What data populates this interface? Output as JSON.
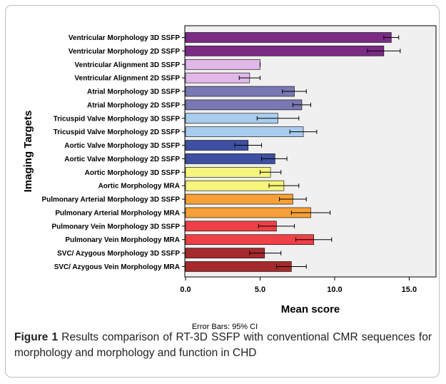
{
  "chart_data": {
    "type": "bar",
    "orientation": "horizontal",
    "categories": [
      "Ventricular Morphology 3D SSFP",
      "Ventricular Morphology 2D SSFP",
      "Ventricular Alignment 3D SSFP",
      "Ventricular Alignment 2D SSFP",
      "Atrial Morphology 3D SSFP",
      "Atrial Morphology 2D SSFP",
      "Tricuspid Valve Morphology 3D SSFP",
      "Tricuspid Valve Morphology 2D SSFP",
      "Aortic Valve Morphology 3D SSFP",
      "Aortic Valve Morphology 2D SSFP",
      "Aortic Morphology 3D SSFP",
      "Aortic Morphology MRA",
      "Pulmonary Arterial Morphology 3D SSFP",
      "Pulmonary Arterial Morphology MRA",
      "Pulmonary Vein Morphology 3D SSFP",
      "Pulmonary Vein Morphology MRA",
      "SVC/ Azygous Morphology 3D SSFP",
      "SVC/ Azygous Vein Morphology MRA"
    ],
    "values": [
      13.8,
      13.3,
      5.0,
      4.3,
      7.3,
      7.8,
      6.2,
      7.9,
      4.2,
      6.0,
      5.7,
      6.6,
      7.2,
      8.4,
      6.1,
      8.6,
      5.3,
      7.1
    ],
    "ci_low": [
      13.3,
      12.2,
      5.0,
      3.6,
      6.5,
      7.2,
      4.8,
      7.0,
      3.3,
      5.1,
      5.0,
      5.6,
      6.3,
      7.1,
      4.9,
      7.4,
      4.3,
      6.1
    ],
    "ci_high": [
      14.3,
      14.4,
      5.0,
      5.0,
      8.1,
      8.4,
      7.6,
      8.8,
      5.1,
      6.8,
      6.4,
      7.6,
      8.1,
      9.7,
      7.3,
      9.8,
      6.4,
      8.1
    ],
    "colors": [
      "#7b2a85",
      "#7b2a85",
      "#e2b8ea",
      "#e2b8ea",
      "#7a78b2",
      "#7a78b2",
      "#a9cdee",
      "#a9cdee",
      "#3d50a3",
      "#3d50a3",
      "#f6f57c",
      "#f6f57c",
      "#f7a037",
      "#f7a037",
      "#ee4046",
      "#ee4046",
      "#a52a2d",
      "#a52a2d"
    ],
    "xlabel": "Mean score",
    "ylabel": "Imaging Targets",
    "xlim": [
      0,
      16.8
    ],
    "xticks": [
      "0.0",
      "5.0",
      "10.0",
      "15.0"
    ],
    "xtick_values": [
      0,
      5,
      10,
      15
    ],
    "grid": false,
    "plot_background": "#f0f0f0",
    "footnote": "Error Bars: 95% CI"
  },
  "caption": {
    "label": "Figure 1",
    "text": " Results comparison of RT-3D SSFP with conventional CMR sequences for morphology and morphology and function in CHD"
  }
}
